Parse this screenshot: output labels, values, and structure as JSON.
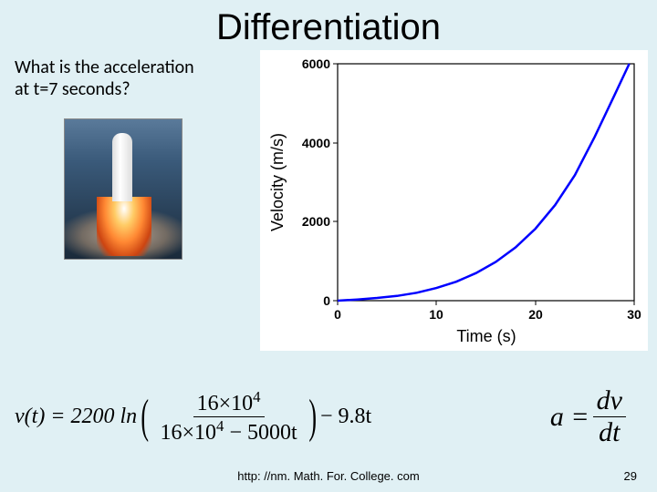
{
  "title": "Differentiation",
  "question_line1": "What is the acceleration",
  "question_line2": "at t=7 seconds?",
  "chart": {
    "type": "line",
    "xlabel": "Time (s)",
    "ylabel": "Velocity (m/s)",
    "xlim": [
      0,
      30
    ],
    "ylim": [
      0,
      6000
    ],
    "xticks": [
      0,
      10,
      20,
      30
    ],
    "yticks": [
      0,
      2000,
      4000,
      6000
    ],
    "x_tick_labels": [
      "0",
      "10",
      "20",
      "30"
    ],
    "y_tick_labels": [
      "0",
      "2000",
      "4000",
      "6000"
    ],
    "axis_label_fontsize": 18,
    "tick_fontsize": 14,
    "line_color": "#0000ff",
    "line_width": 2.5,
    "axis_color": "#000000",
    "background_color": "#ffffff",
    "data_points": [
      [
        0,
        0
      ],
      [
        2,
        30
      ],
      [
        4,
        70
      ],
      [
        6,
        120
      ],
      [
        8,
        200
      ],
      [
        10,
        320
      ],
      [
        12,
        480
      ],
      [
        14,
        700
      ],
      [
        16,
        980
      ],
      [
        18,
        1350
      ],
      [
        20,
        1820
      ],
      [
        22,
        2420
      ],
      [
        24,
        3180
      ],
      [
        26,
        4150
      ],
      [
        28,
        5200
      ],
      [
        29.5,
        6000
      ]
    ]
  },
  "formula_v": {
    "lhs": "v(t) = 2200 ln",
    "num": "16×10",
    "num_sup": "4",
    "den_a": "16×10",
    "den_sup": "4",
    "den_b": " − 5000t",
    "tail": " − 9.8t"
  },
  "formula_a": {
    "lhs": "a = ",
    "num": "dv",
    "den": "dt"
  },
  "footer_url": "http: //nm. Math. For. College. com",
  "page_number": "29"
}
